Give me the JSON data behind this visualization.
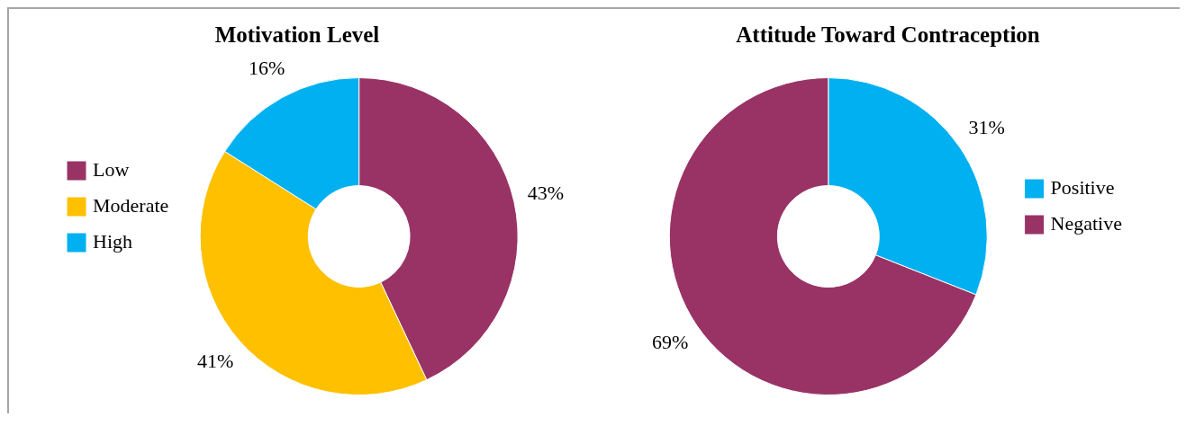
{
  "chart_data": [
    {
      "type": "donut",
      "title": "Motivation Level",
      "categories": [
        "Low",
        "Moderate",
        "High"
      ],
      "values": [
        43,
        41,
        16
      ],
      "colors": [
        "#993366",
        "#ffc000",
        "#00b0f0"
      ],
      "value_labels": [
        "43%",
        "41%",
        "16%"
      ],
      "legend": "left"
    },
    {
      "type": "donut",
      "title": "Attitude Toward Contraception",
      "categories": [
        "Positive",
        "Negative"
      ],
      "values": [
        31,
        69
      ],
      "colors": [
        "#00b0f0",
        "#993366"
      ],
      "value_labels": [
        "31%",
        "69%"
      ],
      "legend": "right"
    }
  ]
}
